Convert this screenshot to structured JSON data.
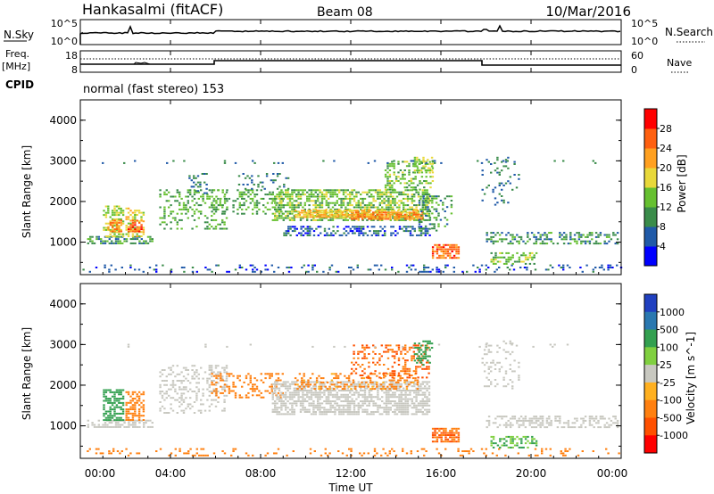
{
  "header": {
    "station": "Hankasalmi (fitACF)",
    "beam": "Beam 08",
    "date": "10/Mar/2016"
  },
  "noise_panel": {
    "left_label": "N.Sky",
    "right_label": "N.Search",
    "left_ticks": [
      "10^5",
      "10^0"
    ],
    "right_ticks": [
      "10^5",
      "10^0"
    ]
  },
  "freq_panel": {
    "left_label_1": "Freq.",
    "left_label_2": "[MHz]",
    "right_label": "Nave",
    "left_ticks": [
      "18",
      "8"
    ],
    "right_ticks": [
      "60",
      "0"
    ]
  },
  "cpid": {
    "label": "CPID",
    "text": "normal (fast stereo) 153"
  },
  "x_axis": {
    "label": "Time UT",
    "ticks": [
      "00:00",
      "04:00",
      "08:00",
      "12:00",
      "16:00",
      "20:00",
      "00:00"
    ]
  },
  "colors": {
    "power": [
      "#0000ff",
      "#205aa8",
      "#3a8c4a",
      "#66c030",
      "#e8d83a",
      "#ffa020",
      "#ff6010",
      "#ff0000"
    ],
    "velocity": [
      "#2040c0",
      "#2a78b0",
      "#33a050",
      "#80d040",
      "#c8c8c0",
      "#ffb020",
      "#ff8010",
      "#ff5000",
      "#ff0000"
    ]
  },
  "chart_data": [
    {
      "type": "heatmap",
      "title": "Power",
      "xlabel": "Time UT",
      "ylabel": "Slant Range [km]",
      "xlim": [
        "00:00",
        "24:00"
      ],
      "ylim": [
        200,
        4500
      ],
      "y_ticks": [
        "1000",
        "2000",
        "3000",
        "4000"
      ],
      "colorbar": {
        "label": "Power [dB]",
        "range": [
          0,
          32
        ],
        "ticks": [
          "4",
          "8",
          "12",
          "16",
          "20",
          "24",
          "28"
        ]
      },
      "echo_regions": [
        {
          "t0": 0.0,
          "t1": 24.0,
          "r0": 250,
          "r1": 450,
          "value": 6,
          "density": 0.18
        },
        {
          "t0": 0.3,
          "t1": 3.2,
          "r0": 950,
          "r1": 1150,
          "value": 10,
          "density": 0.6
        },
        {
          "t0": 1.0,
          "t1": 1.9,
          "r0": 1150,
          "r1": 1900,
          "value": 16,
          "density": 0.55
        },
        {
          "t0": 1.2,
          "t1": 1.8,
          "r0": 1250,
          "r1": 1550,
          "value": 24,
          "density": 0.7
        },
        {
          "t0": 2.0,
          "t1": 2.8,
          "r0": 1150,
          "r1": 1850,
          "value": 18,
          "density": 0.55
        },
        {
          "t0": 2.1,
          "t1": 2.7,
          "r0": 1250,
          "r1": 1550,
          "value": 26,
          "density": 0.7
        },
        {
          "t0": 3.5,
          "t1": 6.5,
          "r0": 1300,
          "r1": 2300,
          "value": 12,
          "density": 0.28
        },
        {
          "t0": 4.8,
          "t1": 5.6,
          "r0": 2200,
          "r1": 2700,
          "value": 8,
          "density": 0.35
        },
        {
          "t0": 5.8,
          "t1": 9.0,
          "r0": 1700,
          "r1": 2300,
          "value": 12,
          "density": 0.3
        },
        {
          "t0": 7.0,
          "t1": 9.2,
          "r0": 2300,
          "r1": 2700,
          "value": 8,
          "density": 0.2
        },
        {
          "t0": 8.5,
          "t1": 15.5,
          "r0": 1550,
          "r1": 2300,
          "value": 14,
          "density": 0.6
        },
        {
          "t0": 9.5,
          "t1": 15.0,
          "r0": 1600,
          "r1": 1800,
          "value": 20,
          "density": 0.75
        },
        {
          "t0": 12.0,
          "t1": 15.2,
          "r0": 1550,
          "r1": 1750,
          "value": 24,
          "density": 0.75
        },
        {
          "t0": 9.0,
          "t1": 15.5,
          "r0": 1150,
          "r1": 1400,
          "value": 6,
          "density": 0.45
        },
        {
          "t0": 13.5,
          "t1": 15.6,
          "r0": 2300,
          "r1": 3000,
          "value": 14,
          "density": 0.35
        },
        {
          "t0": 14.8,
          "t1": 15.6,
          "r0": 2700,
          "r1": 3100,
          "value": 16,
          "density": 0.45
        },
        {
          "t0": 15.0,
          "t1": 16.5,
          "r0": 1300,
          "r1": 2200,
          "value": 10,
          "density": 0.35
        },
        {
          "t0": 15.6,
          "t1": 16.8,
          "r0": 600,
          "r1": 950,
          "value": 25,
          "density": 0.75
        },
        {
          "t0": 17.8,
          "t1": 19.5,
          "r0": 1900,
          "r1": 3100,
          "value": 8,
          "density": 0.15
        },
        {
          "t0": 18.0,
          "t1": 23.8,
          "r0": 950,
          "r1": 1250,
          "value": 10,
          "density": 0.4
        },
        {
          "t0": 18.2,
          "t1": 20.2,
          "r0": 450,
          "r1": 750,
          "value": 14,
          "density": 0.45
        },
        {
          "t0": 0.0,
          "t1": 24.0,
          "r0": 2950,
          "r1": 3020,
          "value": 8,
          "density": 0.06
        }
      ]
    },
    {
      "type": "heatmap",
      "title": "Velocity",
      "xlabel": "Time UT",
      "ylabel": "Slant Range [km]",
      "xlim": [
        "00:00",
        "24:00"
      ],
      "ylim": [
        200,
        4500
      ],
      "y_ticks": [
        "1000",
        "2000",
        "3000",
        "4000"
      ],
      "colorbar": {
        "label": "Velocity [m s^-1]",
        "ticks": [
          "1000",
          "500",
          "100",
          "25",
          "-25",
          "-100",
          "-500",
          "-1000"
        ]
      },
      "echo_regions": [
        {
          "t0": 0.0,
          "t1": 24.0,
          "r0": 250,
          "r1": 450,
          "value": -100,
          "density": 0.15
        },
        {
          "t0": 0.3,
          "t1": 3.2,
          "r0": 950,
          "r1": 1150,
          "value": 0,
          "density": 0.6
        },
        {
          "t0": 1.0,
          "t1": 1.9,
          "r0": 1150,
          "r1": 1900,
          "value": 150,
          "density": 0.6
        },
        {
          "t0": 2.0,
          "t1": 2.8,
          "r0": 1150,
          "r1": 1850,
          "value": -200,
          "density": 0.6
        },
        {
          "t0": 3.5,
          "t1": 6.5,
          "r0": 1300,
          "r1": 2500,
          "value": 0,
          "density": 0.3
        },
        {
          "t0": 5.8,
          "t1": 9.0,
          "r0": 1700,
          "r1": 2300,
          "value": -150,
          "density": 0.3
        },
        {
          "t0": 8.5,
          "t1": 15.5,
          "r0": 1300,
          "r1": 2100,
          "value": 0,
          "density": 0.65
        },
        {
          "t0": 9.5,
          "t1": 15.0,
          "r0": 1900,
          "r1": 2300,
          "value": -80,
          "density": 0.35
        },
        {
          "t0": 12.0,
          "t1": 15.5,
          "r0": 2200,
          "r1": 3000,
          "value": -300,
          "density": 0.3
        },
        {
          "t0": 14.8,
          "t1": 15.6,
          "r0": 2500,
          "r1": 3100,
          "value": 150,
          "density": 0.4
        },
        {
          "t0": 15.6,
          "t1": 16.8,
          "r0": 600,
          "r1": 950,
          "value": -300,
          "density": 0.75
        },
        {
          "t0": 17.8,
          "t1": 19.5,
          "r0": 1900,
          "r1": 3100,
          "value": 0,
          "density": 0.15
        },
        {
          "t0": 18.0,
          "t1": 23.8,
          "r0": 950,
          "r1": 1250,
          "value": 0,
          "density": 0.4
        },
        {
          "t0": 18.2,
          "t1": 20.2,
          "r0": 450,
          "r1": 750,
          "value": 60,
          "density": 0.45
        },
        {
          "t0": 0.0,
          "t1": 24.0,
          "r0": 2950,
          "r1": 3020,
          "value": 0,
          "density": 0.06
        }
      ]
    }
  ]
}
